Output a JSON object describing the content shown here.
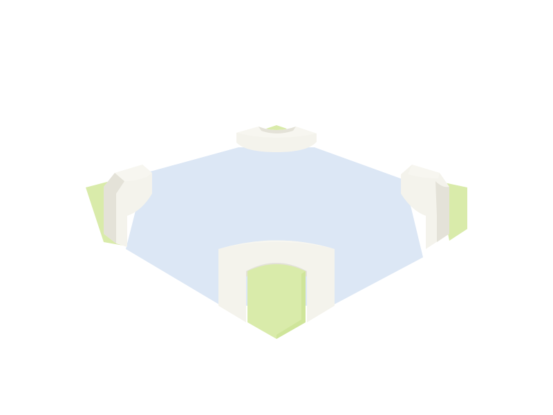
{
  "scene": {
    "kind": "isometric-tile",
    "floor": "pool",
    "corner_pieces": [
      "north",
      "west",
      "east",
      "south"
    ]
  },
  "palette": {
    "background": "#ffffff",
    "floor": "#dce7f5",
    "grass": "#d9ebaa",
    "grass_side": "#cfe59a",
    "stone": "#f0efe7",
    "stone_face": "#f4f3ec",
    "stone_shadow": "#e4e2d8",
    "stone_top": "#f7f6f0"
  }
}
